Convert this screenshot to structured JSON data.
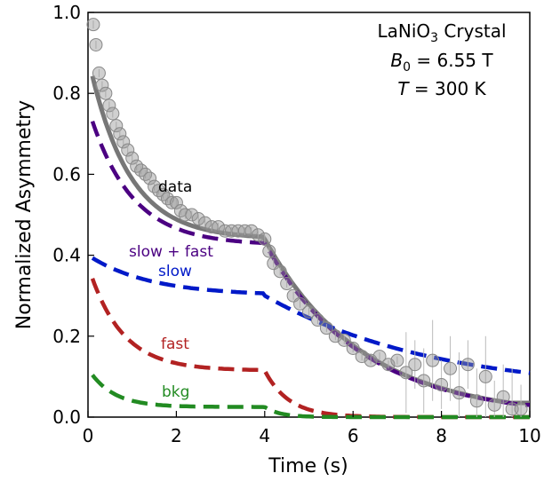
{
  "chart_data": {
    "type": "scatter",
    "xlabel": "Time (s)",
    "ylabel": "Normalized Asymmetry",
    "xlim": [
      0,
      10
    ],
    "ylim": [
      0,
      1.0
    ],
    "xticks": [
      "0",
      "2",
      "4",
      "6",
      "8",
      "10"
    ],
    "yticks": [
      "0.0",
      "0.2",
      "0.4",
      "0.6",
      "0.8",
      "1.0"
    ],
    "grid": false,
    "annotation": {
      "line1": "LaNiO",
      "line1_sub": "3",
      "line1_rest": " Crystal",
      "line2_sym": "B",
      "line2_sub": "0",
      "line2_rest": " =  6.55 T",
      "line3_sym": "T",
      "line3_rest": " =  300 K"
    },
    "series": [
      {
        "name": "data",
        "color": "#808080",
        "kind": "points",
        "x": [
          0.12,
          0.18,
          0.25,
          0.32,
          0.4,
          0.48,
          0.56,
          0.64,
          0.72,
          0.8,
          0.9,
          1.0,
          1.1,
          1.2,
          1.3,
          1.4,
          1.5,
          1.6,
          1.7,
          1.8,
          1.9,
          2.0,
          2.1,
          2.2,
          2.35,
          2.5,
          2.65,
          2.8,
          2.95,
          3.1,
          3.25,
          3.4,
          3.55,
          3.7,
          3.85,
          4.0,
          4.1,
          4.2,
          4.35,
          4.5,
          4.65,
          4.8,
          5.0,
          5.2,
          5.4,
          5.6,
          5.8,
          6.0,
          6.2,
          6.4,
          6.6,
          6.8,
          7.0,
          7.2,
          7.4,
          7.6,
          7.8,
          8.0,
          8.2,
          8.4,
          8.6,
          8.8,
          9.0,
          9.2,
          9.4,
          9.6,
          9.8
        ],
        "y": [
          0.97,
          0.92,
          0.85,
          0.82,
          0.8,
          0.77,
          0.75,
          0.72,
          0.7,
          0.68,
          0.66,
          0.64,
          0.62,
          0.61,
          0.6,
          0.59,
          0.57,
          0.56,
          0.55,
          0.54,
          0.53,
          0.53,
          0.51,
          0.5,
          0.5,
          0.49,
          0.48,
          0.47,
          0.47,
          0.46,
          0.46,
          0.46,
          0.46,
          0.46,
          0.45,
          0.44,
          0.41,
          0.38,
          0.36,
          0.33,
          0.3,
          0.28,
          0.26,
          0.24,
          0.22,
          0.2,
          0.19,
          0.17,
          0.15,
          0.14,
          0.15,
          0.13,
          0.14,
          0.11,
          0.13,
          0.09,
          0.14,
          0.08,
          0.12,
          0.06,
          0.13,
          0.04,
          0.1,
          0.03,
          0.05,
          0.02,
          0.02
        ]
      },
      {
        "name": "slow + fast",
        "color": "#4B0082",
        "kind": "line"
      },
      {
        "name": "slow",
        "color": "#0019C8",
        "kind": "line"
      },
      {
        "name": "fast",
        "color": "#B22222",
        "kind": "line"
      },
      {
        "name": "bkg",
        "color": "#228B22",
        "kind": "line"
      }
    ],
    "fit_label": "data"
  }
}
